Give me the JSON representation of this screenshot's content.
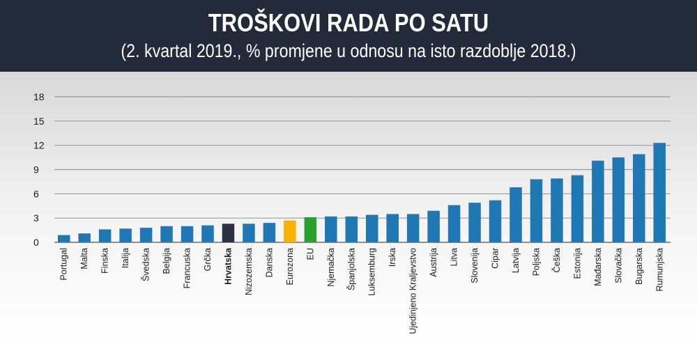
{
  "header": {
    "title": "TROŠKOVI RADA PO SATU",
    "subtitle": "(2. kvartal 2019., % promjene u odnosu na isto razdoblje 2018.)"
  },
  "colors": {
    "header_bg": "#232b3a",
    "default_bar": "#1f77b4",
    "highlight_bar": "#2a3242",
    "eurozone_bar": "#f5b400",
    "eu_bar": "#2ca02c",
    "grid": "#9a9a9a"
  },
  "chart_data": {
    "type": "bar",
    "title": "TROŠKOVI RADA PO SATU",
    "subtitle": "(2. kvartal 2019., % promjene u odnosu na isto razdoblje 2018.)",
    "ylim": [
      0,
      18
    ],
    "yticks": [
      "0",
      "3",
      "6",
      "9",
      "12",
      "15",
      "18"
    ],
    "grid": true,
    "categories": [
      "Portugal",
      "Malta",
      "Finska",
      "Italija",
      "Švedska",
      "Belgija",
      "Francuska",
      "Grčka",
      "Hrvatska",
      "Nizozemska",
      "Danska",
      "Eurozona",
      "EU",
      "Njemačka",
      "Španjolska",
      "Luksemburg",
      "Irska",
      "Ujedinjeno Kraljevstvo",
      "Austrija",
      "Litva",
      "Slovenija",
      "Cipar",
      "Latvija",
      "Poljska",
      "Češka",
      "Estonija",
      "Mađarska",
      "Slovačka",
      "Bugarska",
      "Rumunjska"
    ],
    "values": [
      0.9,
      1.1,
      1.6,
      1.7,
      1.8,
      2.0,
      2.0,
      2.1,
      2.3,
      2.3,
      2.4,
      2.7,
      3.1,
      3.2,
      3.2,
      3.4,
      3.5,
      3.5,
      3.9,
      4.6,
      4.9,
      5.2,
      6.8,
      7.8,
      7.9,
      8.3,
      10.1,
      10.5,
      10.9,
      12.3
    ],
    "highlight": {
      "Hrvatska": "highlight_bar",
      "Eurozona": "eurozone_bar",
      "EU": "eu_bar"
    }
  }
}
